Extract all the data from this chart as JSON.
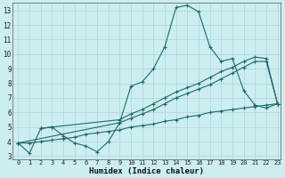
{
  "xlabel": "Humidex (Indice chaleur)",
  "bg_color": "#cceef0",
  "line_color": "#1a6b6b",
  "grid_color": "#b0d8dc",
  "xlim": [
    -0.5,
    23.3
  ],
  "ylim": [
    2.8,
    13.5
  ],
  "yticks": [
    3,
    4,
    5,
    6,
    7,
    8,
    9,
    10,
    11,
    12,
    13
  ],
  "xticks": [
    0,
    1,
    2,
    3,
    4,
    5,
    6,
    7,
    8,
    9,
    10,
    11,
    12,
    13,
    14,
    15,
    16,
    17,
    18,
    19,
    20,
    21,
    22,
    23
  ],
  "line_peak": {
    "x": [
      0,
      1,
      2,
      3,
      4,
      5,
      6,
      7,
      8,
      9,
      10,
      11,
      12,
      13,
      14,
      15,
      16,
      17,
      18,
      19,
      20,
      21,
      22,
      23
    ],
    "y": [
      3.9,
      3.2,
      4.9,
      5.0,
      4.4,
      3.9,
      3.7,
      3.3,
      4.0,
      5.3,
      7.8,
      8.1,
      9.0,
      10.5,
      13.2,
      13.35,
      12.9,
      10.5,
      9.5,
      9.7,
      7.5,
      6.5,
      6.3,
      6.6
    ]
  },
  "line_diag1": {
    "x": [
      0,
      9,
      10,
      11,
      12,
      13,
      14,
      15,
      16,
      17,
      18,
      19,
      20,
      21,
      22,
      23
    ],
    "y": [
      3.9,
      5.3,
      5.6,
      5.9,
      6.2,
      6.6,
      7.0,
      7.3,
      7.6,
      7.9,
      8.3,
      8.7,
      9.1,
      9.5,
      9.5,
      6.6
    ]
  },
  "line_diag2": {
    "x": [
      2,
      3,
      9,
      10,
      11,
      12,
      13,
      14,
      15,
      16,
      17,
      18,
      19,
      20,
      21,
      22,
      23
    ],
    "y": [
      4.9,
      5.0,
      5.5,
      5.9,
      6.2,
      6.6,
      7.0,
      7.4,
      7.7,
      8.0,
      8.4,
      8.8,
      9.1,
      9.5,
      9.8,
      9.7,
      6.6
    ]
  },
  "line_flat": {
    "x": [
      0,
      1,
      2,
      3,
      4,
      5,
      6,
      7,
      8,
      9,
      10,
      11,
      12,
      13,
      14,
      15,
      16,
      17,
      18,
      19,
      20,
      21,
      22,
      23
    ],
    "y": [
      3.9,
      3.9,
      4.0,
      4.1,
      4.2,
      4.3,
      4.5,
      4.6,
      4.7,
      4.8,
      5.0,
      5.1,
      5.2,
      5.4,
      5.5,
      5.7,
      5.8,
      6.0,
      6.1,
      6.2,
      6.3,
      6.4,
      6.5,
      6.6
    ]
  }
}
